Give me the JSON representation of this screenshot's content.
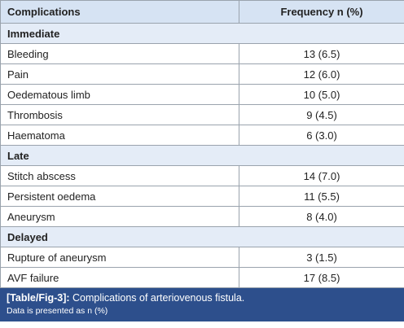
{
  "table": {
    "columns": [
      "Complications",
      "Frequency n (%)"
    ],
    "sections": [
      {
        "title": "Immediate",
        "rows": [
          [
            "Bleeding",
            "13 (6.5)"
          ],
          [
            "Pain",
            "12 (6.0)"
          ],
          [
            "Oedematous limb",
            "10 (5.0)"
          ],
          [
            "Thrombosis",
            "9 (4.5)"
          ],
          [
            "Haematoma",
            "6 (3.0)"
          ]
        ]
      },
      {
        "title": "Late",
        "rows": [
          [
            "Stitch abscess",
            "14 (7.0)"
          ],
          [
            "Persistent oedema",
            "11 (5.5)"
          ],
          [
            "Aneurysm",
            "8 (4.0)"
          ]
        ]
      },
      {
        "title": "Delayed",
        "rows": [
          [
            "Rupture of aneurysm",
            "3 (1.5)"
          ],
          [
            "AVF failure",
            "17 (8.5)"
          ]
        ]
      }
    ]
  },
  "caption": {
    "label": "[Table/Fig-3]:",
    "text": "Complications of arteriovenous fistula.",
    "note": "Data is presented as n (%)"
  }
}
